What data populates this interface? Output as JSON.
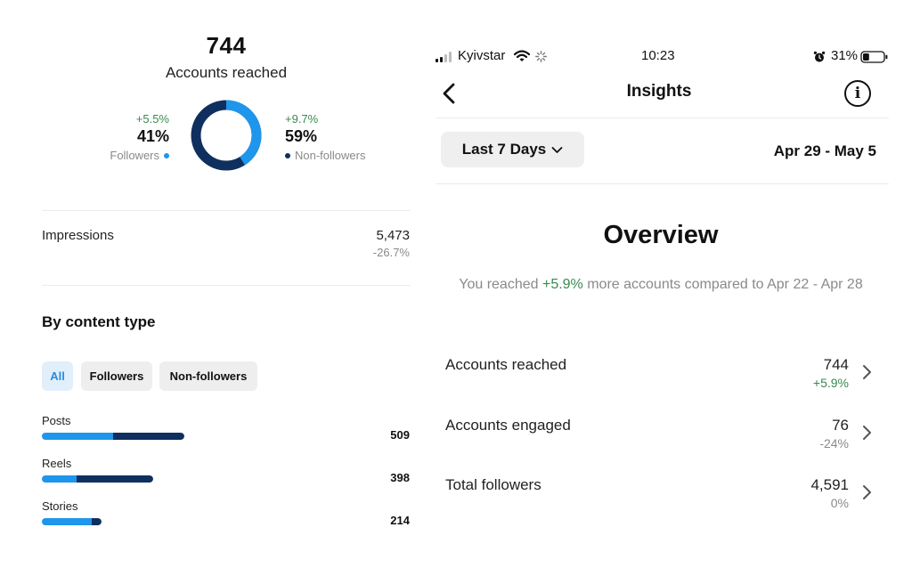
{
  "left": {
    "reach": {
      "value": "744",
      "label": "Accounts reached"
    },
    "followers": {
      "change": "+5.5%",
      "pct": "41%",
      "label": "Followers",
      "fraction": 0.41
    },
    "non_followers": {
      "change": "+9.7%",
      "pct": "59%",
      "label": "Non-followers",
      "fraction": 0.59
    },
    "impressions": {
      "label": "Impressions",
      "value": "5,473",
      "change": "-26.7%"
    },
    "content_section": {
      "title": "By content type",
      "chips": [
        {
          "label": "All",
          "active": true
        },
        {
          "label": "Followers",
          "active": false
        },
        {
          "label": "Non-followers",
          "active": false
        }
      ],
      "rows": [
        {
          "label": "Posts",
          "value": "509",
          "total": 509,
          "followers_share": 0.5
        },
        {
          "label": "Reels",
          "value": "398",
          "total": 398,
          "followers_share": 0.31
        },
        {
          "label": "Stories",
          "value": "214",
          "total": 214,
          "followers_share": 0.83
        }
      ]
    }
  },
  "right": {
    "status_bar": {
      "carrier": "Kyivstar",
      "time": "10:23",
      "battery": "31%",
      "battery_level": 0.31
    },
    "nav": {
      "title": "Insights",
      "info_glyph": "i"
    },
    "range_button": {
      "label": "Last 7 Days"
    },
    "date_range": "Apr 29 - May 5",
    "overview": {
      "title": "Overview",
      "compare_prefix": "You reached ",
      "compare_change": "+5.9%",
      "compare_suffix": " more accounts compared to Apr 22 - Apr 28"
    },
    "metrics": [
      {
        "label": "Accounts reached",
        "value": "744",
        "change": "+5.9%",
        "positive": true
      },
      {
        "label": "Accounts engaged",
        "value": "76",
        "change": "-24%",
        "positive": false
      },
      {
        "label": "Total followers",
        "value": "4,591",
        "change": "0%",
        "positive": false
      }
    ]
  },
  "colors": {
    "followers": "#1e96ec",
    "non_followers": "#0f2f5f",
    "positive": "#3a8a4f",
    "muted": "#8a8a8a",
    "chip_active_bg": "#e1effb",
    "chip_active_text": "#2a8bd9"
  },
  "icons": {
    "back": "chevron-left-icon",
    "info": "info-icon",
    "dropdown": "chevron-down-icon",
    "row": "chevron-right-icon",
    "wifi": "wifi-icon",
    "loading": "spinner-icon",
    "alarm": "alarm-icon",
    "battery": "battery-icon",
    "signal": "signal-bars-icon"
  }
}
